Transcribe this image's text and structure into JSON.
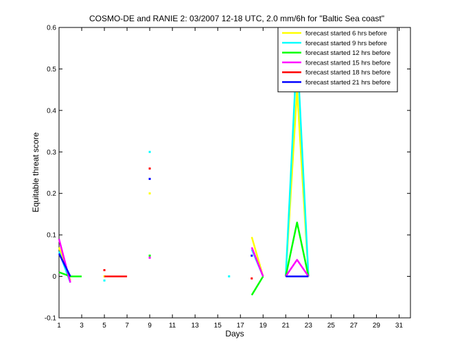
{
  "chart_data": {
    "type": "line",
    "title": "COSMO-DE and RANIE 2: 03/2007 12-18 UTC, 2.0 mm/6h for \"Baltic Sea coast\"",
    "xlabel": "Days",
    "ylabel": "Equitable threat score",
    "xlim": [
      1,
      32
    ],
    "ylim": [
      -0.1,
      0.6
    ],
    "xticks": [
      1,
      3,
      5,
      7,
      9,
      11,
      13,
      15,
      17,
      19,
      21,
      23,
      25,
      27,
      29,
      31
    ],
    "yticks": [
      -0.1,
      0,
      0.1,
      0.2,
      0.3,
      0.4,
      0.5,
      0.6
    ],
    "grid": false,
    "legend_position": "top-right",
    "series": [
      {
        "name": "forecast started 6 hrs before",
        "color": "#ffff00",
        "segments": [
          [
            [
              1,
              0.07
            ],
            [
              2,
              -0.01
            ]
          ],
          [
            [
              18,
              0.095
            ],
            [
              19,
              0.0
            ]
          ],
          [
            [
              21,
              0.0
            ],
            [
              22,
              0.45
            ],
            [
              23,
              0.0
            ]
          ]
        ],
        "points": [
          [
            5,
            0.0
          ],
          [
            9,
            0.2
          ]
        ]
      },
      {
        "name": "forecast started 9 hrs before",
        "color": "#00ffff",
        "segments": [
          [
            [
              1,
              0.06
            ],
            [
              2,
              -0.015
            ]
          ],
          [
            [
              18,
              0.065
            ],
            [
              19,
              0.0
            ]
          ],
          [
            [
              21,
              0.0
            ],
            [
              22,
              0.55
            ],
            [
              23,
              0.0
            ]
          ]
        ],
        "points": [
          [
            5,
            -0.01
          ],
          [
            9,
            0.3
          ],
          [
            16,
            0.0
          ]
        ]
      },
      {
        "name": "forecast started 12 hrs before",
        "color": "#00ff00",
        "segments": [
          [
            [
              1,
              0.01
            ],
            [
              2,
              0.0
            ],
            [
              3,
              0.0
            ]
          ],
          [
            [
              18,
              -0.045
            ],
            [
              19,
              0.0
            ]
          ],
          [
            [
              21,
              0.0
            ],
            [
              22,
              0.13
            ],
            [
              23,
              0.0
            ]
          ]
        ],
        "points": [
          [
            9,
            0.05
          ]
        ]
      },
      {
        "name": "forecast started 15 hrs before",
        "color": "#ff00ff",
        "segments": [
          [
            [
              1,
              0.09
            ],
            [
              2,
              -0.015
            ]
          ],
          [
            [
              18,
              0.07
            ],
            [
              19,
              0.0
            ]
          ],
          [
            [
              21,
              0.0
            ],
            [
              22,
              0.04
            ],
            [
              23,
              0.0
            ]
          ]
        ],
        "points": [
          [
            9,
            0.045
          ]
        ]
      },
      {
        "name": "forecast started 18 hrs before",
        "color": "#ff0000",
        "segments": [
          [
            [
              5,
              0.0
            ],
            [
              7,
              0.0
            ]
          ]
        ],
        "points": [
          [
            5,
            0.015
          ],
          [
            9,
            0.26
          ],
          [
            18,
            -0.005
          ]
        ]
      },
      {
        "name": "forecast started 21 hrs before",
        "color": "#0000ff",
        "segments": [
          [
            [
              1,
              0.055
            ],
            [
              2,
              0.0
            ]
          ],
          [
            [
              21,
              0.0
            ],
            [
              23,
              0.0
            ]
          ]
        ],
        "points": [
          [
            9,
            0.235
          ],
          [
            18,
            0.05
          ]
        ]
      }
    ]
  }
}
